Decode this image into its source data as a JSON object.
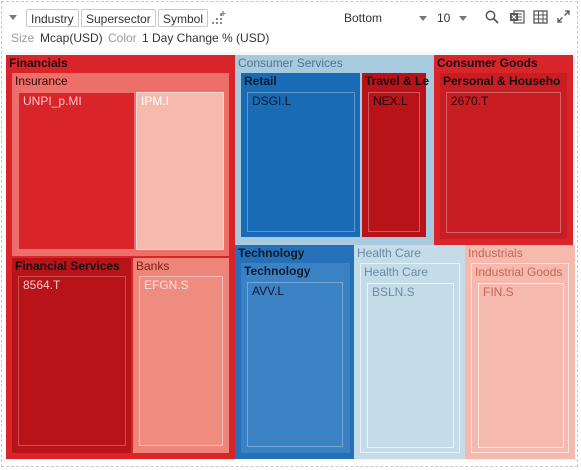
{
  "toolbar": {
    "chips": [
      "Industry",
      "Supersector",
      "Symbol"
    ],
    "size_label": "Size",
    "size_value": "Mcap(USD)",
    "color_label": "Color",
    "color_value": "1 Day Change % (USD)",
    "bottom_label": "Bottom",
    "count_value": "10",
    "icons": [
      "collapse-caret-icon",
      "add-hierarchy-icon",
      "search-icon",
      "excel-export-icon",
      "table-grid-icon",
      "expand-icon"
    ]
  },
  "colors": {
    "dark_red": "#b81318",
    "red": "#d9242a",
    "light_red": "#ee8579",
    "pale_red": "#f5b9ad",
    "dark_blue": "#1a6bb5",
    "blue": "#3a82c4",
    "pale_blue": "#c4dbe8",
    "header_blue": "#a7cadf"
  },
  "treemap": {
    "groups": {
      "financials": "Financials",
      "insurance": "Insurance",
      "financial_services": "Financial Services",
      "banks": "Banks",
      "consumer_services": "Consumer Services",
      "retail": "Retail",
      "travel": "Travel & Le",
      "consumer_goods": "Consumer Goods",
      "personal_household": "Personal & Househo",
      "technology": "Technology",
      "technology_sub": "Technology",
      "health_care": "Health Care",
      "health_care_sub": "Health Care",
      "industrials": "Industrials",
      "industrial_goods": "Industrial Goods"
    },
    "leaves": {
      "unpi": "UNPI_p.MI",
      "ipm": "IPM.I",
      "s8564": "8564.T",
      "efgn": "EFGN.S",
      "dsgi": "DSGI.L",
      "nex": "NEX.L",
      "s2670": "2670.T",
      "avv": "AVV.L",
      "bsln": "BSLN.S",
      "fin": "FIN.S"
    }
  }
}
